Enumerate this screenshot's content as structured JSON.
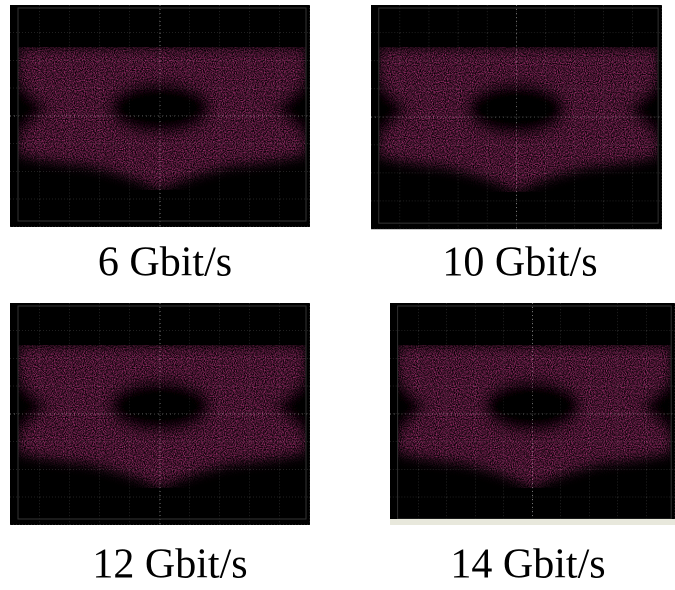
{
  "panels": [
    {
      "label": "6 Gbit/s"
    },
    {
      "label": "10 Gbit/s"
    },
    {
      "label": "12 Gbit/s"
    },
    {
      "label": "14 Gbit/s"
    }
  ]
}
